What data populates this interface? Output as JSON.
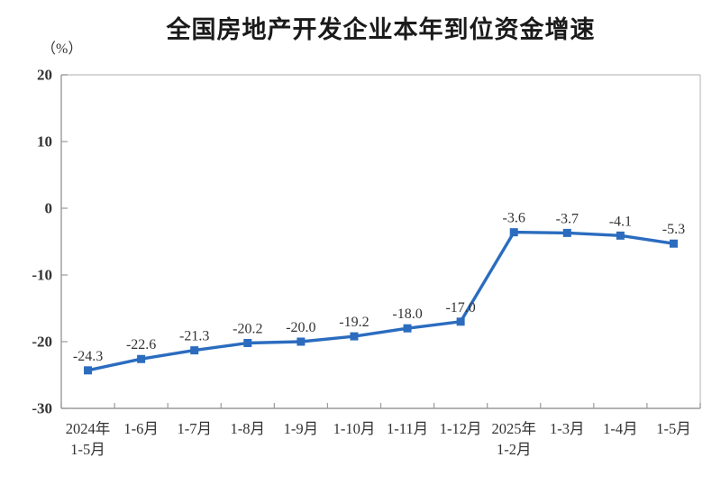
{
  "chart_data": {
    "type": "line",
    "title": "全国房地产开发企业本年到位资金增速",
    "unit_label": "（%）",
    "categories": [
      [
        "2024年",
        "1-5月"
      ],
      [
        "1-6月"
      ],
      [
        "1-7月"
      ],
      [
        "1-8月"
      ],
      [
        "1-9月"
      ],
      [
        "1-10月"
      ],
      [
        "1-11月"
      ],
      [
        "1-12月"
      ],
      [
        "2025年",
        "1-2月"
      ],
      [
        "1-3月"
      ],
      [
        "1-4月"
      ],
      [
        "1-5月"
      ]
    ],
    "values": [
      -24.3,
      -22.6,
      -21.3,
      -20.2,
      -20.0,
      -19.2,
      -18.0,
      -17.0,
      -3.6,
      -3.7,
      -4.1,
      -5.3
    ],
    "data_labels": [
      "-24.3",
      "-22.6",
      "-21.3",
      "-20.2",
      "-20.0",
      "-19.2",
      "-18.0",
      "-17.0",
      "-3.6",
      "-3.7",
      "-4.1",
      "-5.3"
    ],
    "y_ticks": [
      20,
      10,
      0,
      -10,
      -20,
      -30
    ],
    "ylim": [
      -30,
      20
    ],
    "xlabel": "",
    "ylabel": "（%）",
    "grid": false,
    "legend": "none",
    "colors": {
      "line": "#2B6CBF",
      "marker": "#2B6CBF",
      "axis": "#9B9B9B",
      "plot_border": "#C9C9C9",
      "tick_text": "#333333",
      "data_label_text": "#333333",
      "title_text": "#1a1a1a"
    }
  }
}
